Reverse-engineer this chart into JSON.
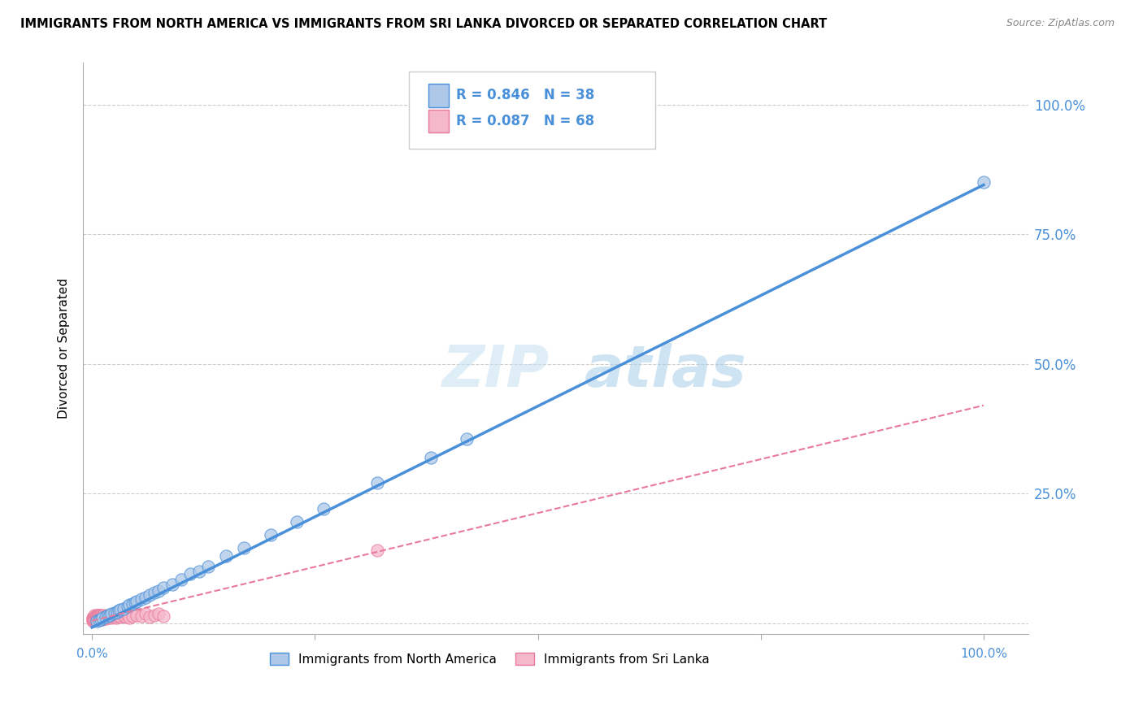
{
  "title": "IMMIGRANTS FROM NORTH AMERICA VS IMMIGRANTS FROM SRI LANKA DIVORCED OR SEPARATED CORRELATION CHART",
  "source": "Source: ZipAtlas.com",
  "ylabel": "Divorced or Separated",
  "legend_blue_r": "R = 0.846",
  "legend_blue_n": "N = 38",
  "legend_pink_r": "R = 0.087",
  "legend_pink_n": "N = 68",
  "legend_label_blue": "Immigrants from North America",
  "legend_label_pink": "Immigrants from Sri Lanka",
  "watermark_zip": "ZIP",
  "watermark_atlas": "atlas",
  "blue_color": "#adc8e8",
  "blue_line_color": "#4a90d9",
  "pink_color": "#f5b8cb",
  "pink_line_color": "#e87a9a",
  "axis_label_color": "#4a90d9",
  "grid_color": "#cccccc",
  "blue_scatter_x": [
    0.005,
    0.008,
    0.01,
    0.012,
    0.015,
    0.018,
    0.02,
    0.022,
    0.025,
    0.028,
    0.03,
    0.032,
    0.035,
    0.04,
    0.042,
    0.045,
    0.048,
    0.05,
    0.055,
    0.06,
    0.065,
    0.07,
    0.075,
    0.08,
    0.09,
    0.1,
    0.11,
    0.12,
    0.13,
    0.15,
    0.17,
    0.2,
    0.23,
    0.26,
    0.32,
    0.38,
    0.42,
    1.0
  ],
  "blue_scatter_y": [
    0.005,
    0.006,
    0.008,
    0.01,
    0.012,
    0.015,
    0.016,
    0.018,
    0.02,
    0.022,
    0.025,
    0.026,
    0.028,
    0.032,
    0.035,
    0.038,
    0.04,
    0.042,
    0.046,
    0.05,
    0.055,
    0.06,
    0.062,
    0.068,
    0.075,
    0.085,
    0.095,
    0.1,
    0.11,
    0.13,
    0.145,
    0.17,
    0.195,
    0.22,
    0.27,
    0.32,
    0.355,
    0.85
  ],
  "pink_scatter_x": [
    0.001,
    0.001,
    0.001,
    0.002,
    0.002,
    0.002,
    0.002,
    0.003,
    0.003,
    0.003,
    0.003,
    0.003,
    0.004,
    0.004,
    0.004,
    0.005,
    0.005,
    0.005,
    0.005,
    0.006,
    0.006,
    0.006,
    0.007,
    0.007,
    0.007,
    0.008,
    0.008,
    0.008,
    0.009,
    0.009,
    0.01,
    0.01,
    0.01,
    0.01,
    0.011,
    0.012,
    0.012,
    0.013,
    0.014,
    0.015,
    0.015,
    0.016,
    0.017,
    0.018,
    0.019,
    0.02,
    0.021,
    0.022,
    0.023,
    0.025,
    0.025,
    0.027,
    0.028,
    0.03,
    0.032,
    0.035,
    0.038,
    0.04,
    0.042,
    0.045,
    0.05,
    0.055,
    0.06,
    0.065,
    0.07,
    0.075,
    0.08,
    0.32
  ],
  "pink_scatter_y": [
    0.005,
    0.008,
    0.01,
    0.006,
    0.01,
    0.012,
    0.008,
    0.008,
    0.012,
    0.015,
    0.01,
    0.007,
    0.01,
    0.014,
    0.008,
    0.012,
    0.016,
    0.009,
    0.014,
    0.01,
    0.015,
    0.008,
    0.012,
    0.016,
    0.009,
    0.01,
    0.015,
    0.008,
    0.012,
    0.016,
    0.01,
    0.015,
    0.008,
    0.012,
    0.014,
    0.012,
    0.008,
    0.015,
    0.01,
    0.014,
    0.009,
    0.012,
    0.016,
    0.01,
    0.014,
    0.012,
    0.016,
    0.01,
    0.014,
    0.012,
    0.018,
    0.01,
    0.014,
    0.016,
    0.012,
    0.014,
    0.012,
    0.016,
    0.01,
    0.014,
    0.016,
    0.014,
    0.018,
    0.012,
    0.016,
    0.018,
    0.014,
    0.14
  ],
  "blue_line_x0": 0.0,
  "blue_line_y0": -0.008,
  "blue_line_x1": 1.0,
  "blue_line_y1": 0.845,
  "pink_line_x0": 0.0,
  "pink_line_y0": 0.005,
  "pink_line_x1": 1.0,
  "pink_line_y1": 0.42,
  "xlim": [
    -0.01,
    1.05
  ],
  "ylim": [
    -0.02,
    1.08
  ],
  "ytick_positions": [
    0.0,
    0.25,
    0.5,
    0.75,
    1.0
  ],
  "ytick_labels_right": [
    "",
    "25.0%",
    "50.0%",
    "75.0%",
    "100.0%"
  ]
}
